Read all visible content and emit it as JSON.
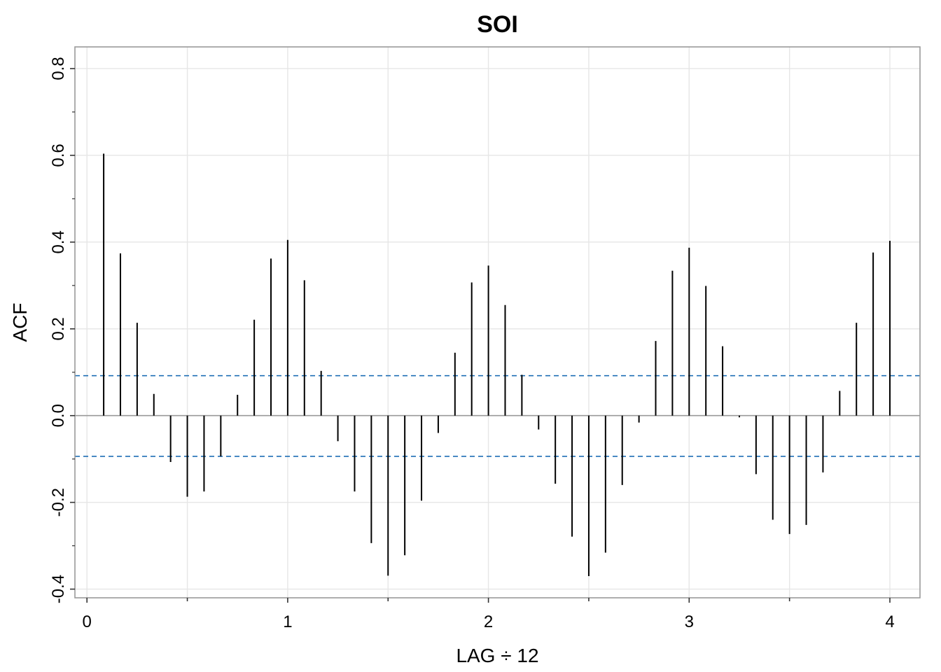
{
  "chart_data": {
    "type": "bar",
    "title": "SOI",
    "xlabel": "LAG ÷ 12",
    "ylabel": "ACF",
    "xlim": [
      -0.06,
      4.15
    ],
    "ylim": [
      -0.42,
      0.85
    ],
    "x_ticks": [
      0,
      1,
      2,
      3,
      4
    ],
    "x_tick_labels": [
      "0",
      "1",
      "2",
      "3",
      "4"
    ],
    "y_ticks": [
      -0.4,
      -0.2,
      0.0,
      0.2,
      0.4,
      0.6,
      0.8
    ],
    "y_tick_labels": [
      "-0.4",
      "-0.2",
      "0.0",
      "0.2",
      "0.4",
      "0.6",
      "0.8"
    ],
    "grid": true,
    "confidence_band": [
      0.092,
      -0.094
    ],
    "colors": {
      "bars": "#000000",
      "band": "#1f6fb5",
      "grid": "#e6e6e6",
      "frame": "#9a9a9a",
      "zero_line": "#9a9a9a"
    },
    "series": [
      {
        "values": [
          0.604,
          0.374,
          0.214,
          0.05,
          -0.107,
          -0.187,
          -0.175,
          -0.094,
          0.048,
          0.221,
          0.362,
          0.405,
          0.312,
          0.103,
          -0.059,
          -0.175,
          -0.294,
          -0.369,
          -0.322,
          -0.196,
          -0.04,
          0.145,
          0.307,
          0.346,
          0.255,
          0.094,
          -0.032,
          -0.157,
          -0.279,
          -0.37,
          -0.316,
          -0.16,
          -0.016,
          0.172,
          0.334,
          0.387,
          0.299,
          0.16,
          -0.004,
          -0.135,
          -0.24,
          -0.273,
          -0.252,
          -0.131,
          0.057,
          0.214,
          0.376,
          0.403
        ]
      }
    ]
  }
}
